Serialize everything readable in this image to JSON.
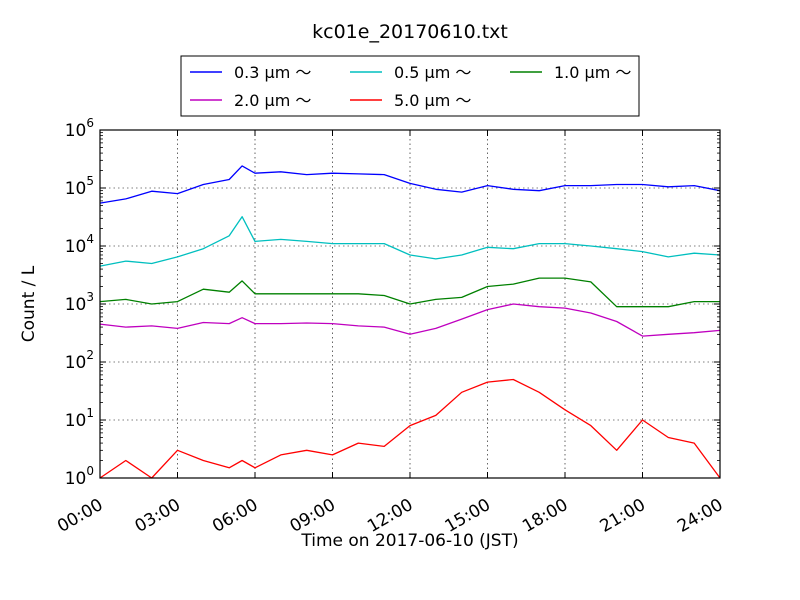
{
  "chart_data": {
    "type": "line",
    "title": "kc01e_20170610.txt",
    "xlabel": "Time on 2017-06-10 (JST)",
    "ylabel": "Count / L",
    "yscale": "log",
    "xlim": [
      "00:00",
      "24:00"
    ],
    "ylim": [
      1,
      1000000
    ],
    "xticks": [
      "00:00",
      "03:00",
      "06:00",
      "09:00",
      "12:00",
      "15:00",
      "18:00",
      "21:00",
      "24:00"
    ],
    "yticks": [
      {
        "base": "10",
        "exp": "0"
      },
      {
        "base": "10",
        "exp": "1"
      },
      {
        "base": "10",
        "exp": "2"
      },
      {
        "base": "10",
        "exp": "3"
      },
      {
        "base": "10",
        "exp": "4"
      },
      {
        "base": "10",
        "exp": "5"
      },
      {
        "base": "10",
        "exp": "6"
      }
    ],
    "grid": true,
    "legend": "top-center",
    "x_hours": [
      0,
      1,
      2,
      3,
      4,
      5,
      5.5,
      6,
      7,
      8,
      9,
      10,
      11,
      12,
      13,
      14,
      15,
      16,
      17,
      18,
      19,
      20,
      21,
      22,
      23,
      24
    ],
    "series": [
      {
        "name": "0.3 μm ～",
        "color": "#0000ff",
        "values": [
          55000,
          65000,
          88000,
          80000,
          115000,
          140000,
          240000,
          180000,
          190000,
          170000,
          180000,
          175000,
          170000,
          120000,
          95000,
          85000,
          110000,
          95000,
          90000,
          110000,
          110000,
          115000,
          115000,
          105000,
          110000,
          90000
        ]
      },
      {
        "name": "0.5 μm ～",
        "color": "#00bfbf",
        "values": [
          4500,
          5500,
          5000,
          6500,
          9000,
          15000,
          32000,
          12000,
          13000,
          12000,
          11000,
          11000,
          11000,
          7000,
          6000,
          7000,
          9500,
          9000,
          11000,
          11000,
          10000,
          9000,
          8000,
          6500,
          7500,
          7000
        ]
      },
      {
        "name": "1.0 μm ～",
        "color": "#008000",
        "values": [
          1100,
          1200,
          1000,
          1100,
          1800,
          1600,
          2500,
          1500,
          1500,
          1500,
          1500,
          1500,
          1400,
          1000,
          1200,
          1300,
          2000,
          2200,
          2800,
          2800,
          2400,
          900,
          900,
          900,
          1100,
          1100
        ]
      },
      {
        "name": "2.0 μm ～",
        "color": "#bf00bf",
        "values": [
          450,
          400,
          420,
          380,
          480,
          460,
          580,
          460,
          460,
          470,
          460,
          420,
          400,
          300,
          380,
          550,
          800,
          1000,
          900,
          850,
          700,
          500,
          280,
          300,
          320,
          350
        ]
      },
      {
        "name": "5.0 μm ～",
        "color": "#ff0000",
        "values": [
          1,
          2,
          1,
          3,
          2,
          1.5,
          2,
          1.5,
          2.5,
          3,
          2.5,
          4,
          3.5,
          8,
          12,
          30,
          45,
          50,
          30,
          15,
          8,
          3,
          10,
          5,
          4,
          1
        ]
      }
    ]
  }
}
